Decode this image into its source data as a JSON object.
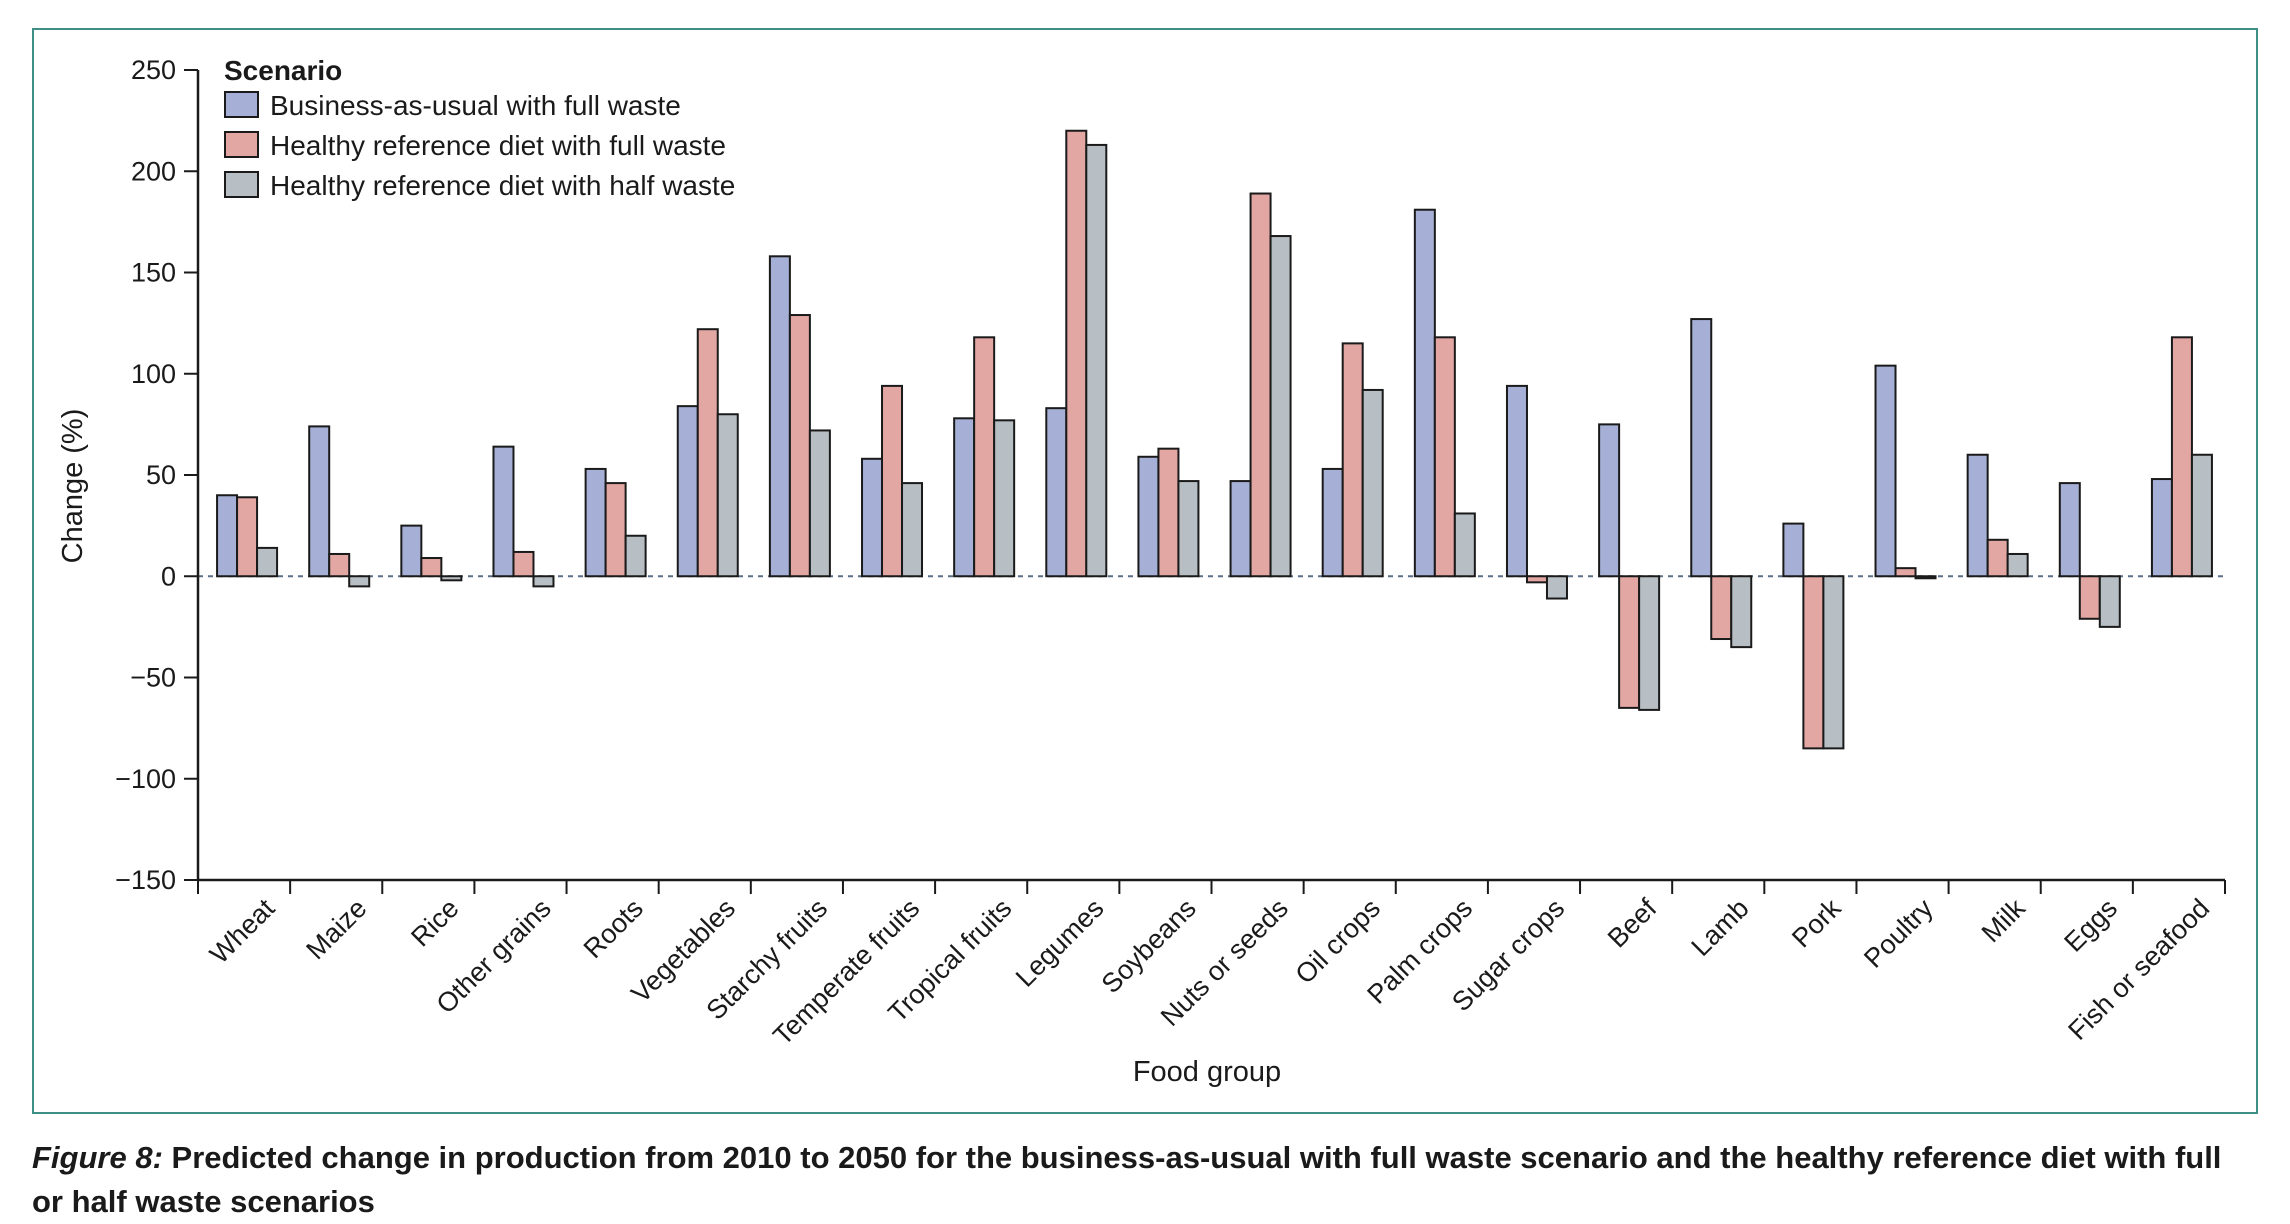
{
  "caption": {
    "label": "Figure 8:",
    "text": " Predicted change in production from 2010 to 2050 for the business-as-usual with full waste scenario and the healthy reference diet with full or half waste scenarios"
  },
  "chart_data": {
    "type": "bar",
    "xlabel": "Food group",
    "ylabel": "Change (%)",
    "ylim": [
      -150,
      250
    ],
    "yticks": [
      250,
      200,
      150,
      100,
      50,
      0,
      -50,
      -100,
      -150
    ],
    "ytick_labels": [
      "250",
      "200",
      "150",
      "100",
      "50",
      "0",
      "−50",
      "−100",
      "−150"
    ],
    "grid": false,
    "zero_line": "dashed",
    "legend": {
      "title": "Scenario",
      "position": "top-left"
    },
    "categories": [
      "Wheat",
      "Maize",
      "Rice",
      "Other grains",
      "Roots",
      "Vegetables",
      "Starchy fruits",
      "Temperate fruits",
      "Tropical fruits",
      "Legumes",
      "Soybeans",
      "Nuts or seeds",
      "Oil crops",
      "Palm crops",
      "Sugar crops",
      "Beef",
      "Lamb",
      "Pork",
      "Poultry",
      "Milk",
      "Eggs",
      "Fish or seafood"
    ],
    "series": [
      {
        "name": "Business-as-usual with full waste",
        "color": "#a6b0d6",
        "values": [
          40,
          74,
          25,
          64,
          53,
          84,
          158,
          58,
          78,
          83,
          59,
          47,
          53,
          181,
          94,
          75,
          127,
          26,
          104,
          60,
          46,
          48
        ]
      },
      {
        "name": "Healthy reference diet with full waste",
        "color": "#e2a6a3",
        "values": [
          39,
          11,
          9,
          12,
          46,
          122,
          129,
          94,
          118,
          220,
          63,
          189,
          115,
          118,
          -3,
          -65,
          -31,
          -85,
          4,
          18,
          -21,
          118
        ]
      },
      {
        "name": "Healthy reference diet with half waste",
        "color": "#b7bfc4",
        "values": [
          14,
          -5,
          -2,
          -5,
          20,
          80,
          72,
          46,
          77,
          213,
          47,
          168,
          92,
          31,
          -11,
          -66,
          -35,
          -85,
          -1,
          11,
          -25,
          60
        ]
      }
    ]
  }
}
